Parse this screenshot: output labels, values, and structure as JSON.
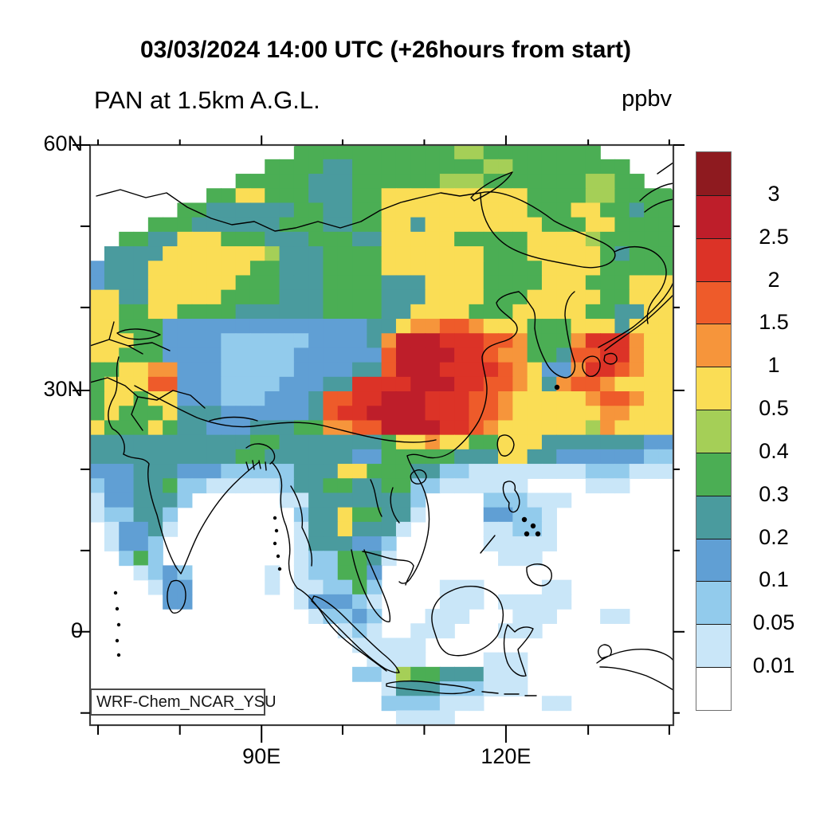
{
  "header": {
    "run_time_title": "03/03/2024 14:00 UTC (+26hours from start)",
    "variable_title": "PAN at 1.5km A.G.L.",
    "units_label": "ppbv"
  },
  "watermark": {
    "label": "WRF-Chem_NCAR_YSU"
  },
  "axes": {
    "lat_major": [
      {
        "label": "60N",
        "f": 0.0
      },
      {
        "label": "30N",
        "f": 0.423
      },
      {
        "label": "0",
        "f": 0.839
      }
    ],
    "lat_minor_f": [
      0.14,
      0.28,
      0.559,
      0.699,
      0.979
    ],
    "lon_major": [
      {
        "label": "90E",
        "f": 0.294
      },
      {
        "label": "120E",
        "f": 0.713
      }
    ],
    "lon_minor_f": [
      0.0137,
      0.154,
      0.433,
      0.573,
      0.854,
      0.993
    ]
  },
  "colorbar": {
    "labels_top_to_bottom": [
      "3",
      "2.5",
      "2",
      "1.5",
      "1",
      "0.5",
      "0.4",
      "0.3",
      "0.2",
      "0.1",
      "0.05",
      "0.01"
    ],
    "colors_top_to_bottom": [
      "#8E1A1F",
      "#BE1E2A",
      "#DC3327",
      "#EE5B2A",
      "#F6953B",
      "#FADD55",
      "#A5CF57",
      "#4BAE54",
      "#4A9B9E",
      "#609FD4",
      "#92CBEC",
      "#C9E6F8",
      "#FFFFFF"
    ]
  },
  "chart_data": {
    "type": "heatmap",
    "title": "PAN at 1.5km A.G.L.",
    "units": "ppbv",
    "time_label": "03/03/2024 14:00 UTC (+26hours from start)",
    "model_label": "WRF-Chem_NCAR_YSU",
    "levels_ppbv": [
      0.01,
      0.05,
      0.1,
      0.2,
      0.3,
      0.4,
      0.5,
      1,
      1.5,
      2,
      2.5,
      3
    ],
    "level_colors_low_to_high": [
      "#FFFFFF",
      "#C9E6F8",
      "#92CBEC",
      "#609FD4",
      "#4A9B9E",
      "#4BAE54",
      "#A5CF57",
      "#FADD55",
      "#F6953B",
      "#EE5B2A",
      "#DC3327",
      "#BE1E2A",
      "#8E1A1F"
    ],
    "lat_ticks_visible": [
      "60N",
      "30N",
      "0"
    ],
    "lon_ticks_visible": [
      "90E",
      "120E"
    ],
    "grid": {
      "ncols": 40,
      "nrows": 40,
      "palette": {
        ".": "#FFFFFF",
        "1": "#C9E6F8",
        "2": "#92CBEC",
        "3": "#609FD4",
        "4": "#4A9B9E",
        "5": "#4BAE54",
        "6": "#A5CF57",
        "7": "#FADD55",
        "8": "#F6953B",
        "9": "#EE5B2A",
        "A": "#DC3327",
        "B": "#BE1E2A",
        "C": "#8E1A1F"
      },
      "rows": [
        "..............555555555556655555555.....",
        "............5555445555555556655555555...",
        "..........5555544455555566655555556655..",
        "........55775554445577777777775555665555",
        "......5544444455445577777777775557755455",
        "....555444444555445577477777777555775555",
        "..55447775554445554477777555557777655555",
        ".444477777776444555577777775557777754555",
        "3444777777755444555577777775555777755555",
        "3444777777555444555544477775555777555777",
        "7744777775555444555544477775557777755777",
        "7755775555444444555544777755577777554477",
        "7755533333333333333447889987775557774777",
        "777553333222222333348BBBAAA9985558AAA877",
        "775553333222223333339BBBBAA98855499AA877",
        "557788333222223333449BBBAAAA987338AA9877",
        "577799333222233344AAAABBBAA9987489987777",
        "577577333222333499AABBBAAA99877777899877",
        "57555744433333349AABBBBAAA99877777788777",
        "75557544333444558899BBBBAA98777777687777",
        "4444444444455444444457787755777444444433",
        "4444444444554444443355555444774433333322",
        "3334443332222244477555442211111111222111",
        "233445221111124455445522111111....111...",
        "1334442......1144444442....222111.......",
        "122442........244755441....33221........",
        ".13341........14474441.....11221........",
        ".1332.........1444332......11111........",
        "..252.........1225541.......111.........",
        "...1232.....1.122553....................",
        "....133.....1.112252....111....11.......",
        ".....33.......133321....111.11111.......",
        "...............12232...111...111...11...",
        ".................121..111...111.........",
        "..................11111.................",
        "...................1111....111..........",
        "..................221655444111..........",
        "....................1444222111..........",
        "....................2222111....11.......",
        ".....................1111..............."
      ]
    }
  }
}
